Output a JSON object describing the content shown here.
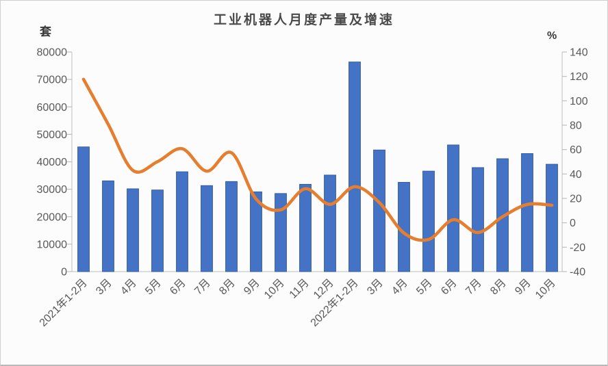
{
  "chart_data": {
    "type": "bar",
    "combo": true,
    "title": "工业机器人月度产量及增速",
    "categories": [
      "2021年1-2月",
      "3月",
      "4月",
      "5月",
      "6月",
      "7月",
      "8月",
      "9月",
      "10月",
      "11月",
      "12月",
      "2022年1-2月",
      "3月",
      "4月",
      "5月",
      "6月",
      "7月",
      "8月",
      "9月",
      "10月"
    ],
    "series": [
      {
        "name": "月度产量",
        "type": "bar",
        "axis": "left",
        "color": "#4472C4",
        "border_color": "#2F5597",
        "values": [
          45433,
          33073,
          30178,
          29743,
          36383,
          31342,
          32828,
          29068,
          28460,
          31816,
          35175,
          76381,
          44317,
          32535,
          36616,
          46144,
          37907,
          41135,
          43009,
          39120
        ]
      },
      {
        "name": "增速",
        "type": "line",
        "axis": "right",
        "color": "#E67E30",
        "values": [
          117.6,
          80.8,
          43.0,
          50.1,
          60.7,
          42.3,
          57.4,
          19.5,
          10.6,
          27.9,
          15.1,
          29.6,
          16.6,
          -8.4,
          -13.7,
          2.5,
          -8.0,
          5.0,
          15.0,
          14.4
        ]
      }
    ],
    "left_axis": {
      "unit": "套",
      "min": 0,
      "max": 80000,
      "ticks": [
        80000,
        70000,
        60000,
        50000,
        40000,
        30000,
        20000,
        10000,
        0
      ]
    },
    "right_axis": {
      "unit": "%",
      "min": -40,
      "max": 140,
      "ticks": [
        140,
        120,
        100,
        80,
        60,
        40,
        20,
        0,
        -20,
        -40
      ]
    },
    "grid": false,
    "legend": "none",
    "axis_text_color": "#595959",
    "axis_line_color": "#c9c9c9"
  }
}
